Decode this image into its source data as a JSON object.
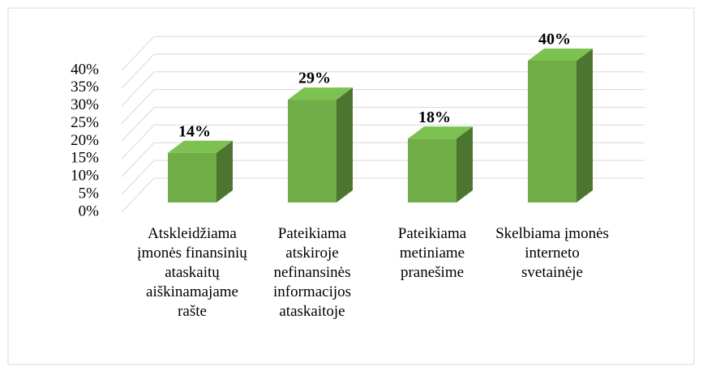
{
  "chart_data": {
    "type": "bar3d",
    "categories": [
      "Atskleidžiama įmonės finansinių ataskaitų aiškinamajame rašte",
      "Pateikiama atskiroje nefinansinės informacijos ataskaitoje",
      "Pateikiama metiniame pranešime",
      "Skelbiama įmonės interneto svetainėje"
    ],
    "values": [
      14,
      29,
      18,
      40
    ],
    "value_labels": [
      "14%",
      "29%",
      "18%",
      "40%"
    ],
    "color": "#70ad47",
    "ylim": [
      0,
      40
    ],
    "yticks": [
      {
        "value": 0,
        "label": "0%"
      },
      {
        "value": 5,
        "label": "5%"
      },
      {
        "value": 10,
        "label": "10%"
      },
      {
        "value": 15,
        "label": "15%"
      },
      {
        "value": 20,
        "label": "20%"
      },
      {
        "value": 25,
        "label": "25%"
      },
      {
        "value": 30,
        "label": "30%"
      },
      {
        "value": 35,
        "label": "35%"
      },
      {
        "value": 40,
        "label": "40%"
      }
    ],
    "grid": true
  }
}
